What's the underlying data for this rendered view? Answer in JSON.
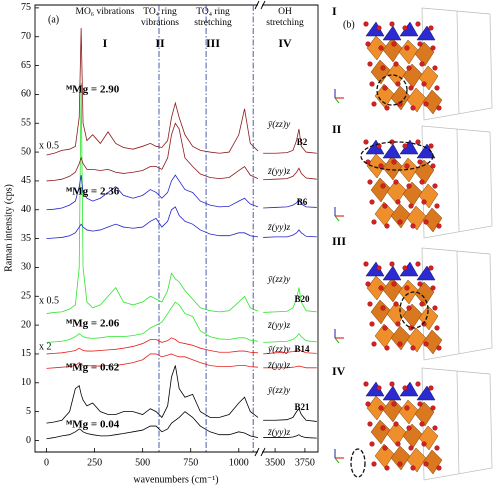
{
  "chart_data": {
    "type": "line",
    "panel_label": "(a)",
    "x_label": "wavenumbers (cm⁻¹)",
    "y_label": "Raman intensity (cps)",
    "xlim": [
      -60,
      3860
    ],
    "xbreak": [
      1100,
      3390
    ],
    "ylim": [
      -2,
      75.5
    ],
    "xticks": [
      0,
      250,
      500,
      750,
      1000,
      3500,
      3750
    ],
    "yticks": [
      0,
      5,
      10,
      15,
      20,
      25,
      30,
      35,
      40,
      45,
      50,
      55,
      60,
      65,
      70,
      75
    ],
    "boundaries": [
      585,
      830,
      1075
    ],
    "sections": [
      {
        "title": [
          "MO₆ vibrations"
        ],
        "numeral": "I"
      },
      {
        "title": [
          "TO₄ ring",
          "vibrations"
        ],
        "numeral": "II"
      },
      {
        "title": [
          "TO₄ ring",
          "stretching"
        ],
        "numeral": "III"
      },
      {
        "title": [
          "OH",
          "stretching"
        ],
        "numeral": "IV"
      }
    ],
    "x": [
      0,
      40,
      80,
      120,
      150,
      170,
      180,
      190,
      210,
      240,
      280,
      320,
      360,
      400,
      450,
      500,
      540,
      570,
      600,
      630,
      650,
      670,
      690,
      720,
      760,
      800,
      850,
      900,
      950,
      1000,
      1030,
      1060,
      1100,
      3400,
      3500,
      3600,
      3650,
      3680,
      3700,
      3720,
      3760,
      3850
    ],
    "samples": [
      {
        "name": "B21",
        "composition": "ᴹMg = 0.04",
        "color": "#000000",
        "series": [
          {
            "name": "z̄(yy)z",
            "values": [
              0.3,
              0.5,
              0.8,
              1,
              1.5,
              2,
              1.8,
              1.5,
              1.2,
              1,
              0.8,
              0.8,
              1,
              1.2,
              1.5,
              1.8,
              2.5,
              2.5,
              1.5,
              2,
              3,
              3.5,
              4,
              5,
              4,
              2.5,
              1.5,
              1,
              1,
              1.5,
              1.3,
              0.8,
              0.5,
              0.5,
              0.5,
              0.5,
              0.6,
              0.8,
              1,
              0.7,
              0.5,
              0.4
            ]
          },
          {
            "name": "ȳ(zz)y",
            "values": [
              3,
              3.2,
              3.5,
              5,
              9,
              9.5,
              8,
              7,
              6,
              6.5,
              5,
              4.5,
              4.5,
              5,
              5,
              4.5,
              5.5,
              5,
              4,
              6,
              11,
              13,
              9,
              7.5,
              8,
              5,
              4,
              4,
              4.5,
              6.5,
              7.5,
              5,
              4,
              3.5,
              3.5,
              3.6,
              4,
              5,
              5.5,
              4.5,
              3.5,
              3.3
            ]
          }
        ]
      },
      {
        "name": "B14",
        "composition": "ᴹMg = 0.62",
        "color": "#e8201e",
        "scale": "x 2",
        "series": [
          {
            "name": "z̄(yy)z",
            "values": [
              12.5,
              12.6,
              12.7,
              12.8,
              13,
              13.5,
              13.2,
              13,
              13,
              12.9,
              12.9,
              13,
              13,
              13.2,
              13.5,
              14,
              15,
              15,
              14.5,
              14.8,
              15,
              14.7,
              14.5,
              14.5,
              14,
              13.5,
              13,
              12.8,
              12.8,
              13,
              13,
              12.8,
              12.7,
              12.6,
              12.6,
              12.6,
              12.7,
              12.8,
              12.9,
              12.8,
              12.6,
              12.6
            ]
          },
          {
            "name": "ȳ(zz)y",
            "values": [
              15,
              15.1,
              15.2,
              15.4,
              15.6,
              16,
              15.8,
              15.6,
              15.5,
              15.5,
              15.6,
              15.7,
              15.8,
              16,
              16.3,
              16.8,
              17.5,
              17.5,
              17,
              17.3,
              17.8,
              17.5,
              17,
              16.8,
              16.5,
              16,
              15.6,
              15.3,
              15.3,
              15.5,
              15.5,
              15.3,
              15.2,
              15,
              15.2,
              15.3,
              15.4,
              15.6,
              15.8,
              15.5,
              15.2,
              15.1
            ]
          }
        ]
      },
      {
        "name": "B20",
        "composition": "ᴹMg = 2.06",
        "color": "#2ee62e",
        "scale": "x 0.5",
        "series": [
          {
            "name": "z̄(yy)z",
            "values": [
              17,
              17.1,
              17.2,
              17.5,
              18,
              18.5,
              18.3,
              18,
              17.8,
              17.7,
              17.8,
              18,
              18,
              18,
              18.2,
              18.5,
              19.5,
              20,
              20.5,
              22,
              23,
              24,
              23.5,
              22,
              21.5,
              19,
              18,
              17.6,
              17.5,
              17.8,
              17.8,
              17.4,
              17.2,
              17,
              17.1,
              17.2,
              17.5,
              18,
              18.5,
              18,
              17.3,
              17.1
            ]
          },
          {
            "name": "ȳ(zz)y",
            "values": [
              22,
              22.2,
              22.3,
              22.8,
              23.5,
              30,
              62,
              30,
              24,
              23,
              23.5,
              25,
              26.5,
              24,
              23.5,
              24,
              25,
              24.5,
              24,
              26,
              29,
              28,
              27.5,
              26,
              24.5,
              23,
              22.5,
              22.3,
              22.5,
              24,
              25,
              23,
              22.4,
              22.2,
              22.3,
              22.4,
              23,
              24.5,
              26.5,
              24,
              22.5,
              22.3
            ]
          }
        ]
      },
      {
        "name": "B6",
        "composition": "ᴹMg = 2.36",
        "color": "#2323c8",
        "series": [
          {
            "name": "z̄(yy)z",
            "values": [
              35,
              35.1,
              35.2,
              35.5,
              36,
              37,
              37.5,
              37,
              36.5,
              36.3,
              36.5,
              37,
              37.5,
              37,
              36.8,
              37,
              38,
              38.5,
              37,
              38,
              40,
              40.5,
              39,
              38,
              37.5,
              36.5,
              35.8,
              35.5,
              35.5,
              36,
              36,
              35.5,
              35.3,
              35.2,
              35.3,
              35.3,
              35.6,
              36,
              36.5,
              36,
              35.4,
              35.3
            ]
          },
          {
            "values": [
              40,
              40.1,
              40.3,
              40.8,
              41.5,
              44,
              46,
              43,
              42,
              41.5,
              42,
              43,
              44,
              42.5,
              42,
              42.5,
              43.5,
              43,
              42,
              43,
              45,
              46,
              45,
              43.5,
              43,
              41.5,
              40.8,
              40.5,
              40.6,
              41.5,
              42,
              41,
              40.5,
              40.3,
              40.4,
              40.5,
              40.8,
              41.2,
              41.8,
              41,
              40.5,
              40.4
            ]
          }
        ]
      },
      {
        "name": "B2",
        "composition": "ᴹMg = 2.90",
        "color": "#8b1a1a",
        "scale": "x 0.5",
        "series": [
          {
            "name": "z̄(yy)z",
            "values": [
              45,
              45.1,
              45.3,
              45.8,
              46.5,
              48,
              49,
              48,
              47,
              47,
              46.8,
              47,
              46.5,
              46.3,
              46.5,
              46.8,
              47.5,
              47.5,
              47,
              49,
              53,
              55,
              54,
              49,
              47.5,
              46.2,
              45.6,
              45.4,
              45.6,
              46.8,
              47.5,
              46,
              45.4,
              45.2,
              45.3,
              45.4,
              45.8,
              46.5,
              47.2,
              46.3,
              45.5,
              45.3
            ]
          },
          {
            "name": "ȳ(zz)y",
            "values": [
              49.5,
              49.8,
              50.3,
              50.5,
              51,
              56,
              71.5,
              55,
              52,
              53,
              51.5,
              53.5,
              51.5,
              50.8,
              50.5,
              51,
              51.5,
              51,
              50.8,
              52,
              56,
              58.5,
              56,
              53,
              51,
              50.3,
              50,
              49.8,
              50,
              53,
              57.5,
              51.5,
              50.2,
              49.8,
              49.8,
              49.9,
              50.3,
              52,
              54,
              51,
              50,
              49.8
            ]
          }
        ]
      }
    ]
  },
  "panel_b": {
    "label": "(b)",
    "views": [
      "I",
      "II",
      "III",
      "IV"
    ]
  }
}
